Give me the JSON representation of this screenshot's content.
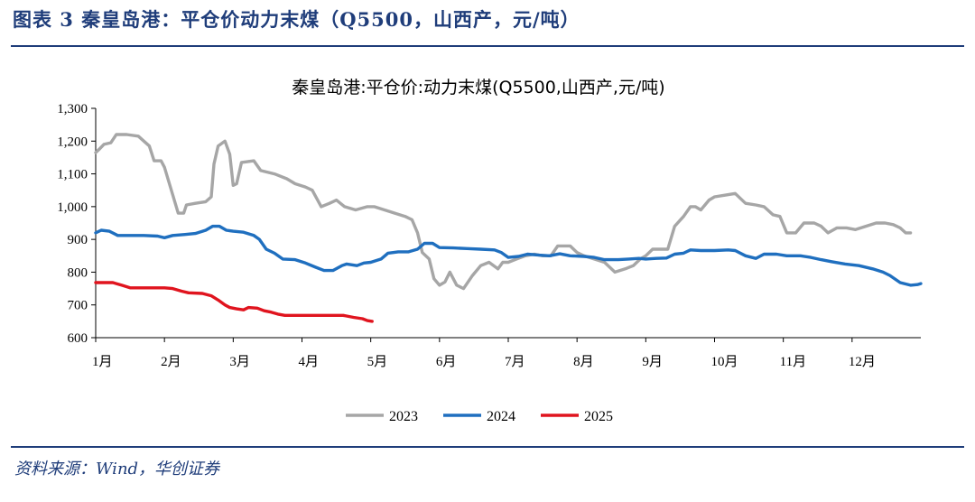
{
  "figure_title": "图表 3  秦皇岛港：平仓价动力末煤（Q5500，山西产，元/吨）",
  "source": "资料来源：Wind，华创证券",
  "colors": {
    "2023": "#a6a6a6",
    "2024": "#1f6fbf",
    "2025": "#e0141e",
    "accent": "#1f3d7a"
  },
  "chart_data": {
    "type": "line",
    "title": "秦皇岛港:平仓价:动力末煤(Q5500,山西产,元/吨)",
    "xlabel": "",
    "ylabel": "",
    "ylim": [
      600,
      1300
    ],
    "yticks": [
      600,
      700,
      800,
      900,
      1000,
      1100,
      1200,
      1300
    ],
    "ytick_labels": [
      "600",
      "700",
      "800",
      "900",
      "1,000",
      "1,100",
      "1,200",
      "1,300"
    ],
    "xlim": [
      1,
      13
    ],
    "xticks": [
      1,
      2,
      3,
      4,
      5,
      6,
      7,
      8,
      9,
      10,
      11,
      12
    ],
    "xtick_labels": [
      "1月",
      "2月",
      "3月",
      "4月",
      "5月",
      "6月",
      "7月",
      "8月",
      "9月",
      "10月",
      "11月",
      "12月"
    ],
    "legend_position": "bottom",
    "grid": false,
    "series": [
      {
        "name": "2023",
        "points": [
          [
            1.0,
            1165
          ],
          [
            1.05,
            1175
          ],
          [
            1.12,
            1190
          ],
          [
            1.22,
            1195
          ],
          [
            1.3,
            1220
          ],
          [
            1.45,
            1220
          ],
          [
            1.62,
            1215
          ],
          [
            1.78,
            1185
          ],
          [
            1.85,
            1140
          ],
          [
            1.95,
            1140
          ],
          [
            2.0,
            1120
          ],
          [
            2.1,
            1050
          ],
          [
            2.2,
            980
          ],
          [
            2.28,
            980
          ],
          [
            2.32,
            1005
          ],
          [
            2.45,
            1010
          ],
          [
            2.6,
            1015
          ],
          [
            2.68,
            1030
          ],
          [
            2.72,
            1130
          ],
          [
            2.78,
            1185
          ],
          [
            2.88,
            1200
          ],
          [
            2.95,
            1160
          ],
          [
            3.0,
            1065
          ],
          [
            3.05,
            1070
          ],
          [
            3.12,
            1135
          ],
          [
            3.3,
            1140
          ],
          [
            3.4,
            1110
          ],
          [
            3.6,
            1100
          ],
          [
            3.78,
            1085
          ],
          [
            3.9,
            1070
          ],
          [
            4.05,
            1060
          ],
          [
            4.15,
            1050
          ],
          [
            4.28,
            1000
          ],
          [
            4.4,
            1010
          ],
          [
            4.5,
            1020
          ],
          [
            4.62,
            1000
          ],
          [
            4.78,
            990
          ],
          [
            4.95,
            1000
          ],
          [
            5.05,
            1000
          ],
          [
            5.2,
            990
          ],
          [
            5.35,
            980
          ],
          [
            5.5,
            970
          ],
          [
            5.6,
            960
          ],
          [
            5.68,
            920
          ],
          [
            5.75,
            860
          ],
          [
            5.85,
            840
          ],
          [
            5.92,
            780
          ],
          [
            6.0,
            760
          ],
          [
            6.08,
            770
          ],
          [
            6.15,
            800
          ],
          [
            6.25,
            760
          ],
          [
            6.35,
            750
          ],
          [
            6.48,
            790
          ],
          [
            6.6,
            820
          ],
          [
            6.72,
            830
          ],
          [
            6.85,
            810
          ],
          [
            6.92,
            830
          ],
          [
            7.0,
            830
          ],
          [
            7.12,
            840
          ],
          [
            7.25,
            850
          ],
          [
            7.38,
            855
          ],
          [
            7.5,
            850
          ],
          [
            7.62,
            850
          ],
          [
            7.72,
            880
          ],
          [
            7.9,
            880
          ],
          [
            8.0,
            860
          ],
          [
            8.1,
            850
          ],
          [
            8.25,
            840
          ],
          [
            8.4,
            830
          ],
          [
            8.55,
            800
          ],
          [
            8.7,
            810
          ],
          [
            8.82,
            820
          ],
          [
            8.92,
            840
          ],
          [
            9.0,
            850
          ],
          [
            9.1,
            870
          ],
          [
            9.22,
            870
          ],
          [
            9.32,
            870
          ],
          [
            9.42,
            940
          ],
          [
            9.55,
            970
          ],
          [
            9.65,
            1000
          ],
          [
            9.72,
            1000
          ],
          [
            9.8,
            990
          ],
          [
            9.92,
            1020
          ],
          [
            10.0,
            1030
          ],
          [
            10.15,
            1035
          ],
          [
            10.3,
            1040
          ],
          [
            10.45,
            1010
          ],
          [
            10.6,
            1005
          ],
          [
            10.72,
            1000
          ],
          [
            10.85,
            975
          ],
          [
            10.95,
            970
          ],
          [
            11.05,
            920
          ],
          [
            11.18,
            920
          ],
          [
            11.3,
            950
          ],
          [
            11.45,
            950
          ],
          [
            11.55,
            940
          ],
          [
            11.65,
            920
          ],
          [
            11.78,
            935
          ],
          [
            11.92,
            935
          ],
          [
            12.05,
            930
          ],
          [
            12.2,
            940
          ],
          [
            12.35,
            950
          ],
          [
            12.48,
            950
          ],
          [
            12.6,
            945
          ],
          [
            12.7,
            935
          ],
          [
            12.78,
            920
          ],
          [
            12.85,
            920
          ]
        ]
      },
      {
        "name": "2024",
        "points": [
          [
            1.0,
            920
          ],
          [
            1.08,
            928
          ],
          [
            1.2,
            925
          ],
          [
            1.32,
            912
          ],
          [
            1.5,
            912
          ],
          [
            1.7,
            912
          ],
          [
            1.9,
            910
          ],
          [
            2.0,
            905
          ],
          [
            2.12,
            912
          ],
          [
            2.3,
            915
          ],
          [
            2.45,
            918
          ],
          [
            2.6,
            928
          ],
          [
            2.7,
            940
          ],
          [
            2.8,
            940
          ],
          [
            2.9,
            928
          ],
          [
            3.0,
            925
          ],
          [
            3.15,
            922
          ],
          [
            3.3,
            912
          ],
          [
            3.38,
            900
          ],
          [
            3.48,
            870
          ],
          [
            3.6,
            858
          ],
          [
            3.72,
            840
          ],
          [
            3.9,
            838
          ],
          [
            4.05,
            828
          ],
          [
            4.2,
            815
          ],
          [
            4.32,
            805
          ],
          [
            4.45,
            805
          ],
          [
            4.58,
            820
          ],
          [
            4.65,
            825
          ],
          [
            4.8,
            820
          ],
          [
            4.9,
            828
          ],
          [
            5.0,
            830
          ],
          [
            5.15,
            840
          ],
          [
            5.25,
            858
          ],
          [
            5.4,
            862
          ],
          [
            5.55,
            862
          ],
          [
            5.68,
            870
          ],
          [
            5.78,
            888
          ],
          [
            5.9,
            888
          ],
          [
            6.0,
            875
          ],
          [
            6.2,
            874
          ],
          [
            6.4,
            872
          ],
          [
            6.6,
            870
          ],
          [
            6.8,
            868
          ],
          [
            6.9,
            860
          ],
          [
            7.0,
            845
          ],
          [
            7.15,
            848
          ],
          [
            7.28,
            855
          ],
          [
            7.45,
            852
          ],
          [
            7.6,
            850
          ],
          [
            7.75,
            856
          ],
          [
            7.9,
            850
          ],
          [
            8.1,
            848
          ],
          [
            8.25,
            845
          ],
          [
            8.4,
            838
          ],
          [
            8.6,
            838
          ],
          [
            8.75,
            840
          ],
          [
            8.9,
            842
          ],
          [
            9.0,
            840
          ],
          [
            9.15,
            842
          ],
          [
            9.3,
            843
          ],
          [
            9.42,
            855
          ],
          [
            9.55,
            858
          ],
          [
            9.65,
            868
          ],
          [
            9.8,
            866
          ],
          [
            10.0,
            866
          ],
          [
            10.2,
            868
          ],
          [
            10.3,
            866
          ],
          [
            10.45,
            850
          ],
          [
            10.6,
            842
          ],
          [
            10.72,
            855
          ],
          [
            10.9,
            855
          ],
          [
            11.05,
            850
          ],
          [
            11.25,
            850
          ],
          [
            11.4,
            845
          ],
          [
            11.55,
            838
          ],
          [
            11.7,
            832
          ],
          [
            11.9,
            825
          ],
          [
            12.1,
            820
          ],
          [
            12.3,
            810
          ],
          [
            12.45,
            800
          ],
          [
            12.55,
            790
          ],
          [
            12.7,
            768
          ],
          [
            12.85,
            760
          ],
          [
            12.95,
            762
          ],
          [
            13.0,
            765
          ]
        ]
      },
      {
        "name": "2025",
        "points": [
          [
            1.0,
            768
          ],
          [
            1.12,
            768
          ],
          [
            1.25,
            768
          ],
          [
            1.38,
            760
          ],
          [
            1.5,
            752
          ],
          [
            1.7,
            752
          ],
          [
            1.85,
            752
          ],
          [
            2.0,
            752
          ],
          [
            2.12,
            750
          ],
          [
            2.25,
            742
          ],
          [
            2.35,
            737
          ],
          [
            2.55,
            735
          ],
          [
            2.68,
            728
          ],
          [
            2.78,
            715
          ],
          [
            2.88,
            700
          ],
          [
            2.95,
            692
          ],
          [
            3.05,
            688
          ],
          [
            3.15,
            685
          ],
          [
            3.22,
            692
          ],
          [
            3.35,
            690
          ],
          [
            3.45,
            682
          ],
          [
            3.55,
            678
          ],
          [
            3.65,
            672
          ],
          [
            3.75,
            668
          ],
          [
            3.9,
            668
          ],
          [
            4.1,
            668
          ],
          [
            4.3,
            668
          ],
          [
            4.5,
            668
          ],
          [
            4.6,
            668
          ],
          [
            4.75,
            662
          ],
          [
            4.88,
            658
          ],
          [
            4.95,
            652
          ],
          [
            5.02,
            650
          ]
        ]
      }
    ]
  }
}
